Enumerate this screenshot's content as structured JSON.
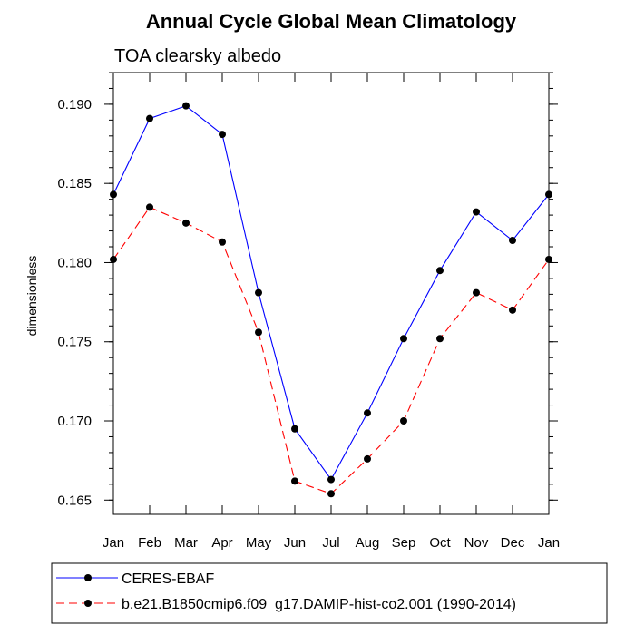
{
  "chart_data": {
    "type": "line",
    "title": "Annual Cycle Global Mean Climatology",
    "subtitle": "TOA clearsky albedo",
    "xlabel": "",
    "ylabel": "dimensionless",
    "categories": [
      "Jan",
      "Feb",
      "Mar",
      "Apr",
      "May",
      "Jun",
      "Jul",
      "Aug",
      "Sep",
      "Oct",
      "Nov",
      "Dec",
      "Jan"
    ],
    "ylim": [
      0.1641,
      0.192
    ],
    "yticks": [
      0.165,
      0.17,
      0.175,
      0.18,
      0.185,
      0.19
    ],
    "ytick_labels": [
      "0.165",
      "0.170",
      "0.175",
      "0.180",
      "0.185",
      "0.190"
    ],
    "grid": false,
    "legend_position": "bottom",
    "series": [
      {
        "name": "CERES-EBAF",
        "color": "#0000ff",
        "dash": "solid",
        "values": [
          0.1843,
          0.1891,
          0.1899,
          0.1881,
          0.1781,
          0.1695,
          0.1663,
          0.1705,
          0.1752,
          0.1795,
          0.1832,
          0.1814,
          0.1843
        ]
      },
      {
        "name": "b.e21.B1850cmip6.f09_g17.DAMIP-hist-co2.001 (1990-2014)",
        "color": "#ff0000",
        "dash": "dashed",
        "values": [
          0.1802,
          0.1835,
          0.1825,
          0.1813,
          0.1756,
          0.1662,
          0.1654,
          0.1676,
          0.17,
          0.1752,
          0.1781,
          0.177,
          0.1802
        ]
      }
    ]
  }
}
